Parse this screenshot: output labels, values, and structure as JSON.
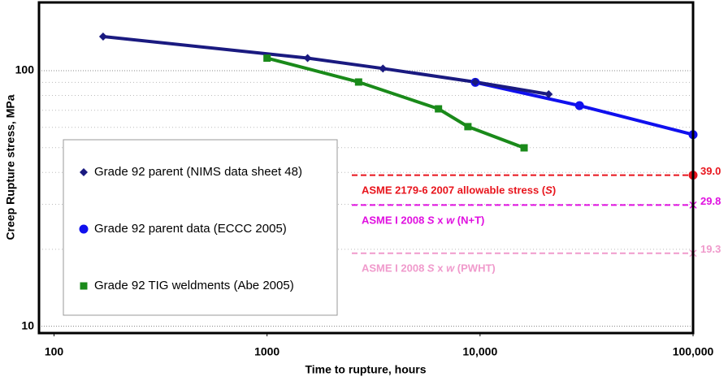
{
  "chart_data": {
    "type": "line",
    "x_label": "Time to rupture, hours",
    "y_label": "Creep Rupture stress, MPa",
    "xscale": "log",
    "yscale": "log",
    "xlim": [
      85,
      100000
    ],
    "ylim": [
      9.4,
      185
    ],
    "xticks": [
      100,
      1000,
      {
        "value": 10000,
        "label": "10,000"
      },
      {
        "value": 100000,
        "label": "100,000"
      }
    ],
    "yticks": [
      10,
      100
    ],
    "grid": true,
    "series": [
      {
        "name": "Grade 92 parent (NIMS data sheet 48)",
        "color": "#1a1a80",
        "marker": "diamond",
        "x": [
          170,
          1550,
          3500,
          9500,
          21000
        ],
        "values": [
          136,
          112,
          102,
          90.3,
          80.9
        ]
      },
      {
        "name": "Grade 92 parent data (ECCC 2005)",
        "color": "#1010ee",
        "marker": "circle",
        "x": [
          9500,
          29300,
          100000
        ],
        "values": [
          90,
          73,
          56.2
        ]
      },
      {
        "name": "Grade 92 TIG weldments (Abe 2005)",
        "color": "#1a8a1a",
        "marker": "square",
        "x": [
          1000,
          2690,
          6380,
          8770,
          16100
        ],
        "values": [
          112,
          90.3,
          70.9,
          60.4,
          49.9
        ]
      }
    ],
    "reference_lines": [
      {
        "label_parts": [
          "ASME  2179-6 2007 allowable stress (",
          "S",
          ")"
        ],
        "color": "#e8141c",
        "marker": "circle",
        "x": [
          2500,
          100000
        ],
        "value": 39.0,
        "value_label": "39.0"
      },
      {
        "label_parts": [
          "ASME I 2008 ",
          "S",
          " x ",
          "w",
          " (N+T)"
        ],
        "color": "#e010e0",
        "marker": "x",
        "x": [
          2500,
          100000
        ],
        "value": 29.8,
        "value_label": "29.8"
      },
      {
        "label_parts": [
          "ASME I 2008 ",
          "S",
          " x ",
          "w",
          " (PWHT)"
        ],
        "color": "#f09acc",
        "marker": "x",
        "x": [
          2500,
          100000
        ],
        "value": 19.3,
        "value_label": "19.3"
      }
    ]
  }
}
